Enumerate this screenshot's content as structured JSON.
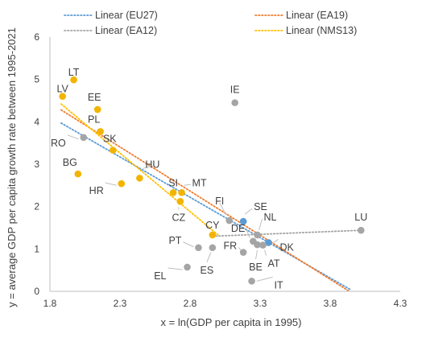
{
  "chart_data": {
    "type": "scatter",
    "xlabel": "x = ln(GDP per capita in 1995)",
    "ylabel": "y = average GDP per capita growth rate between 1995-2021",
    "xlim": [
      1.8,
      4.3
    ],
    "ylim": [
      0,
      6
    ],
    "xticks": [
      "1.8",
      "2.3",
      "2.8",
      "3.3",
      "3.8",
      "4.3"
    ],
    "yticks": [
      "0",
      "1",
      "2",
      "3",
      "4",
      "5",
      "6"
    ],
    "grid": false,
    "legend_position": "top",
    "colors": {
      "nms": "#F2B400",
      "other": "#A5A5A5",
      "highlight": "#5B9BD5"
    },
    "trendlines": [
      {
        "name": "Linear (EU27)",
        "color": "#5B9BD5",
        "x": [
          1.88,
          3.95
        ],
        "y": [
          3.97,
          0.03
        ]
      },
      {
        "name": "Linear (EA19)",
        "color": "#ED7D31",
        "x": [
          1.88,
          3.97
        ],
        "y": [
          4.28,
          -0.07
        ]
      },
      {
        "name": "Linear (EA12)",
        "color": "#A5A5A5",
        "x": [
          2.96,
          4.02
        ],
        "y": [
          1.3,
          1.44
        ]
      },
      {
        "name": "Linear (NMS13)",
        "color": "#FFC000",
        "x": [
          1.88,
          3.0
        ],
        "y": [
          4.42,
          1.33
        ]
      }
    ],
    "points": [
      {
        "name": "LV",
        "x": 1.89,
        "y": 4.6,
        "group": "nms"
      },
      {
        "name": "LT",
        "x": 1.97,
        "y": 4.99,
        "group": "nms"
      },
      {
        "name": "EE",
        "x": 2.14,
        "y": 4.29,
        "group": "nms"
      },
      {
        "name": "PL",
        "x": 2.16,
        "y": 3.77,
        "group": "nms"
      },
      {
        "name": "SK",
        "x": 2.25,
        "y": 3.33,
        "group": "nms"
      },
      {
        "name": "BG",
        "x": 2.0,
        "y": 2.77,
        "group": "nms"
      },
      {
        "name": "HU",
        "x": 2.44,
        "y": 2.67,
        "group": "nms"
      },
      {
        "name": "HR",
        "x": 2.31,
        "y": 2.54,
        "group": "nms"
      },
      {
        "name": "SI",
        "x": 2.68,
        "y": 2.33,
        "group": "nms"
      },
      {
        "name": "MT",
        "x": 2.74,
        "y": 2.33,
        "group": "nms"
      },
      {
        "name": "CZ",
        "x": 2.73,
        "y": 2.12,
        "group": "nms"
      },
      {
        "name": "CY",
        "x": 2.96,
        "y": 1.33,
        "group": "nms"
      },
      {
        "name": "RO",
        "x": 2.04,
        "y": 3.63,
        "group": "other"
      },
      {
        "name": "IE",
        "x": 3.12,
        "y": 4.45,
        "group": "other"
      },
      {
        "name": "FI",
        "x": 3.08,
        "y": 1.67,
        "group": "other"
      },
      {
        "name": "SE",
        "x": 3.18,
        "y": 1.65,
        "group": "highlight"
      },
      {
        "name": "NL",
        "x": 3.28,
        "y": 1.33,
        "group": "other"
      },
      {
        "name": "DE",
        "x": 3.25,
        "y": 1.18,
        "group": "other"
      },
      {
        "name": "DK",
        "x": 3.36,
        "y": 1.15,
        "group": "highlight"
      },
      {
        "name": "BE",
        "x": 3.28,
        "y": 1.1,
        "group": "other"
      },
      {
        "name": "AT",
        "x": 3.32,
        "y": 1.09,
        "group": "other"
      },
      {
        "name": "FR",
        "x": 3.18,
        "y": 0.92,
        "group": "other"
      },
      {
        "name": "PT",
        "x": 2.86,
        "y": 1.03,
        "group": "other"
      },
      {
        "name": "ES",
        "x": 2.96,
        "y": 1.03,
        "group": "other"
      },
      {
        "name": "EL",
        "x": 2.78,
        "y": 0.57,
        "group": "other"
      },
      {
        "name": "IT",
        "x": 3.24,
        "y": 0.24,
        "group": "other"
      },
      {
        "name": "LU",
        "x": 4.02,
        "y": 1.44,
        "group": "other"
      }
    ]
  }
}
